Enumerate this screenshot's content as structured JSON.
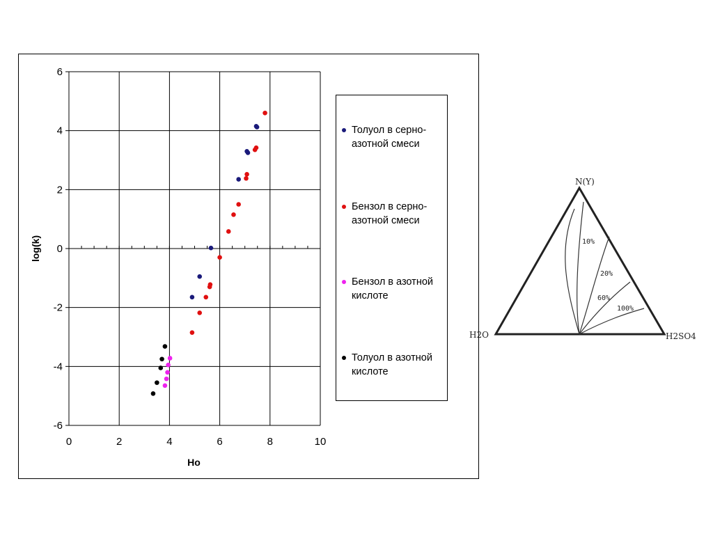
{
  "chart_data": {
    "type": "scatter",
    "xlabel": "Ho",
    "ylabel": "log(k)",
    "xlim": [
      0,
      10
    ],
    "ylim": [
      -6,
      6
    ],
    "x_ticks": [
      "0",
      "2",
      "4",
      "6",
      "8",
      "10"
    ],
    "y_ticks": [
      "6",
      "4",
      "2",
      "0",
      "-2",
      "-4",
      "-6"
    ],
    "grid": true,
    "legend_position": "right",
    "series": [
      {
        "name": "Толуол в серно-азотной смеси",
        "color": "#1a1a7a",
        "points": [
          [
            7.45,
            4.15
          ],
          [
            7.48,
            4.12
          ],
          [
            7.08,
            3.3
          ],
          [
            7.12,
            3.25
          ],
          [
            6.75,
            2.35
          ],
          [
            5.65,
            0.02
          ],
          [
            5.2,
            -0.95
          ],
          [
            4.9,
            -1.65
          ]
        ]
      },
      {
        "name": "Бензол в серно-азотной смеси",
        "color": "#e01010",
        "points": [
          [
            7.8,
            4.6
          ],
          [
            7.45,
            3.42
          ],
          [
            7.4,
            3.35
          ],
          [
            7.08,
            2.52
          ],
          [
            7.05,
            2.38
          ],
          [
            6.75,
            1.5
          ],
          [
            6.55,
            1.15
          ],
          [
            6.35,
            0.58
          ],
          [
            6.0,
            -0.3
          ],
          [
            5.62,
            -1.22
          ],
          [
            5.6,
            -1.3
          ],
          [
            5.45,
            -1.65
          ],
          [
            5.2,
            -2.18
          ],
          [
            4.9,
            -2.85
          ]
        ]
      },
      {
        "name": "Бензол в азотной кислоте",
        "color": "#ee22ee",
        "points": [
          [
            4.02,
            -3.72
          ],
          [
            3.95,
            -3.95
          ],
          [
            3.92,
            -4.2
          ],
          [
            3.88,
            -4.42
          ],
          [
            3.82,
            -4.65
          ]
        ]
      },
      {
        "name": "Толуол в азотной кислоте",
        "color": "#000000",
        "points": [
          [
            3.82,
            -3.32
          ],
          [
            3.7,
            -3.75
          ],
          [
            3.65,
            -4.05
          ],
          [
            3.5,
            -4.55
          ],
          [
            3.35,
            -4.92
          ]
        ]
      }
    ]
  },
  "ternary": {
    "top_label": "N(Y)",
    "left_label": "H2O",
    "right_label": "H2SO4",
    "curve_labels": [
      "10%",
      "20%",
      "60%",
      "100%"
    ]
  }
}
